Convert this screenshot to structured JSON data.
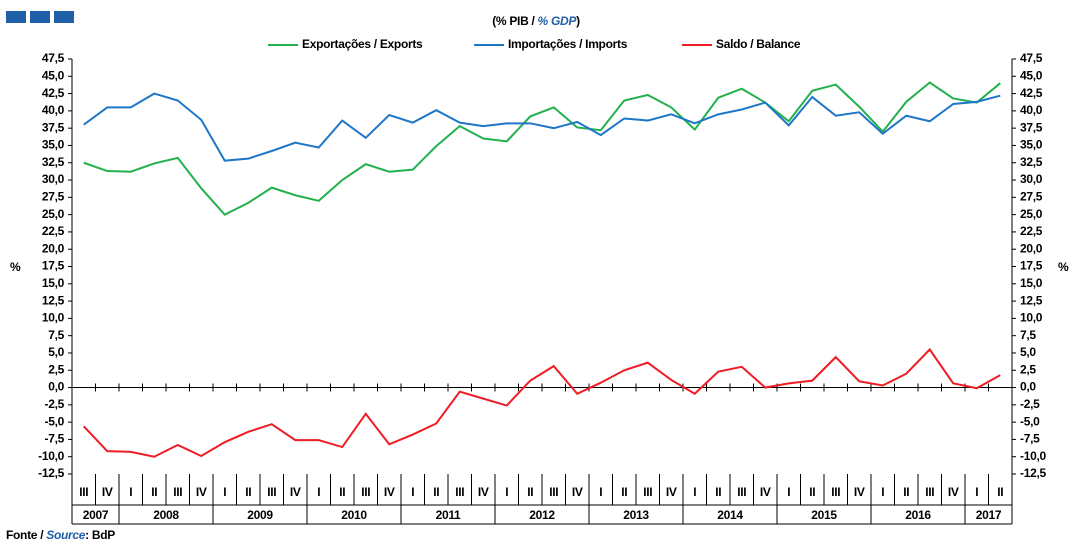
{
  "chart_data": {
    "type": "line",
    "subtitle": [
      "(% PIB / ",
      "% GDP",
      ")"
    ],
    "source": [
      "Fonte / ",
      "Source",
      ": BdP"
    ],
    "y_label": "%",
    "y2_label": "%",
    "years": [
      {
        "year": "2007",
        "quarters": [
          "III",
          "IV"
        ]
      },
      {
        "year": "2008",
        "quarters": [
          "I",
          "II",
          "III",
          "IV"
        ]
      },
      {
        "year": "2009",
        "quarters": [
          "I",
          "II",
          "III",
          "IV"
        ]
      },
      {
        "year": "2010",
        "quarters": [
          "I",
          "II",
          "III",
          "IV"
        ]
      },
      {
        "year": "2011",
        "quarters": [
          "I",
          "II",
          "III",
          "IV"
        ]
      },
      {
        "year": "2012",
        "quarters": [
          "I",
          "II",
          "III",
          "IV"
        ]
      },
      {
        "year": "2013",
        "quarters": [
          "I",
          "II",
          "III",
          "IV"
        ]
      },
      {
        "year": "2014",
        "quarters": [
          "I",
          "II",
          "III",
          "IV"
        ]
      },
      {
        "year": "2015",
        "quarters": [
          "I",
          "II",
          "III",
          "IV"
        ]
      },
      {
        "year": "2016",
        "quarters": [
          "I",
          "II",
          "III",
          "IV"
        ]
      },
      {
        "year": "2017",
        "quarters": [
          "I",
          "II"
        ]
      }
    ],
    "series": [
      {
        "name": "Exportações / Exports",
        "color": "#22b14c",
        "values": [
          32.5,
          31.3,
          31.2,
          32.4,
          33.2,
          28.8,
          25.0,
          26.7,
          28.9,
          27.8,
          27.0,
          30.0,
          32.3,
          31.2,
          31.5,
          34.9,
          37.8,
          36.0,
          35.6,
          39.2,
          40.5,
          37.6,
          37.2,
          41.5,
          42.3,
          40.5,
          37.3,
          41.9,
          43.2,
          41.2,
          38.5,
          42.9,
          43.8,
          40.6,
          37.0,
          41.3,
          44.1,
          41.8,
          41.2,
          44.0
        ]
      },
      {
        "name": "Importações / Imports",
        "color": "#1f77c8",
        "values": [
          38.0,
          40.5,
          40.5,
          42.5,
          41.5,
          38.7,
          32.8,
          33.1,
          34.2,
          35.4,
          34.7,
          38.6,
          36.1,
          39.4,
          38.3,
          40.1,
          38.3,
          37.8,
          38.2,
          38.2,
          37.5,
          38.4,
          36.5,
          38.9,
          38.6,
          39.5,
          38.2,
          39.5,
          40.2,
          41.2,
          37.9,
          42.0,
          39.3,
          39.8,
          36.7,
          39.3,
          38.5,
          41.0,
          41.3,
          42.2
        ]
      },
      {
        "name": "Saldo / Balance",
        "color": "#ee1c24",
        "values": [
          -5.6,
          -9.2,
          -9.3,
          -10.0,
          -8.3,
          -9.9,
          -7.9,
          -6.4,
          -5.3,
          -7.6,
          -7.6,
          -8.6,
          -3.8,
          -8.2,
          -6.8,
          -5.2,
          -0.6,
          -1.6,
          -2.6,
          1.0,
          3.1,
          -0.9,
          0.7,
          2.5,
          3.6,
          1.1,
          -0.9,
          2.3,
          3.0,
          0.0,
          0.6,
          1.0,
          4.4,
          0.9,
          0.3,
          2.0,
          5.5,
          0.6,
          -0.1,
          1.8
        ]
      }
    ],
    "ylim": [
      -12.5,
      47.5
    ],
    "yticks": [
      {
        "value": -12.5,
        "label": "-12,5"
      },
      {
        "value": -10,
        "label": "-10,0"
      },
      {
        "value": -7.5,
        "label": "-7,5"
      },
      {
        "value": -5,
        "label": "-5,0"
      },
      {
        "value": -2.5,
        "label": "-2,5"
      },
      {
        "value": 0,
        "label": "0,0"
      },
      {
        "value": 2.5,
        "label": "2,5"
      },
      {
        "value": 5,
        "label": "5,0"
      },
      {
        "value": 7.5,
        "label": "7,5"
      },
      {
        "value": 10,
        "label": "10,0"
      },
      {
        "value": 12.5,
        "label": "12,5"
      },
      {
        "value": 15,
        "label": "15,0"
      },
      {
        "value": 17.5,
        "label": "17,5"
      },
      {
        "value": 20,
        "label": "20,0"
      },
      {
        "value": 22.5,
        "label": "22,5"
      },
      {
        "value": 25,
        "label": "25,0"
      },
      {
        "value": 27.5,
        "label": "27,5"
      },
      {
        "value": 30,
        "label": "30,0"
      },
      {
        "value": 32.5,
        "label": "32,5"
      },
      {
        "value": 35,
        "label": "35,0"
      },
      {
        "value": 37.5,
        "label": "37,5"
      },
      {
        "value": 40,
        "label": "40,0"
      },
      {
        "value": 42.5,
        "label": "42,5"
      },
      {
        "value": 45,
        "label": "45,0"
      },
      {
        "value": 47.5,
        "label": "47,5"
      }
    ],
    "grid": false
  }
}
